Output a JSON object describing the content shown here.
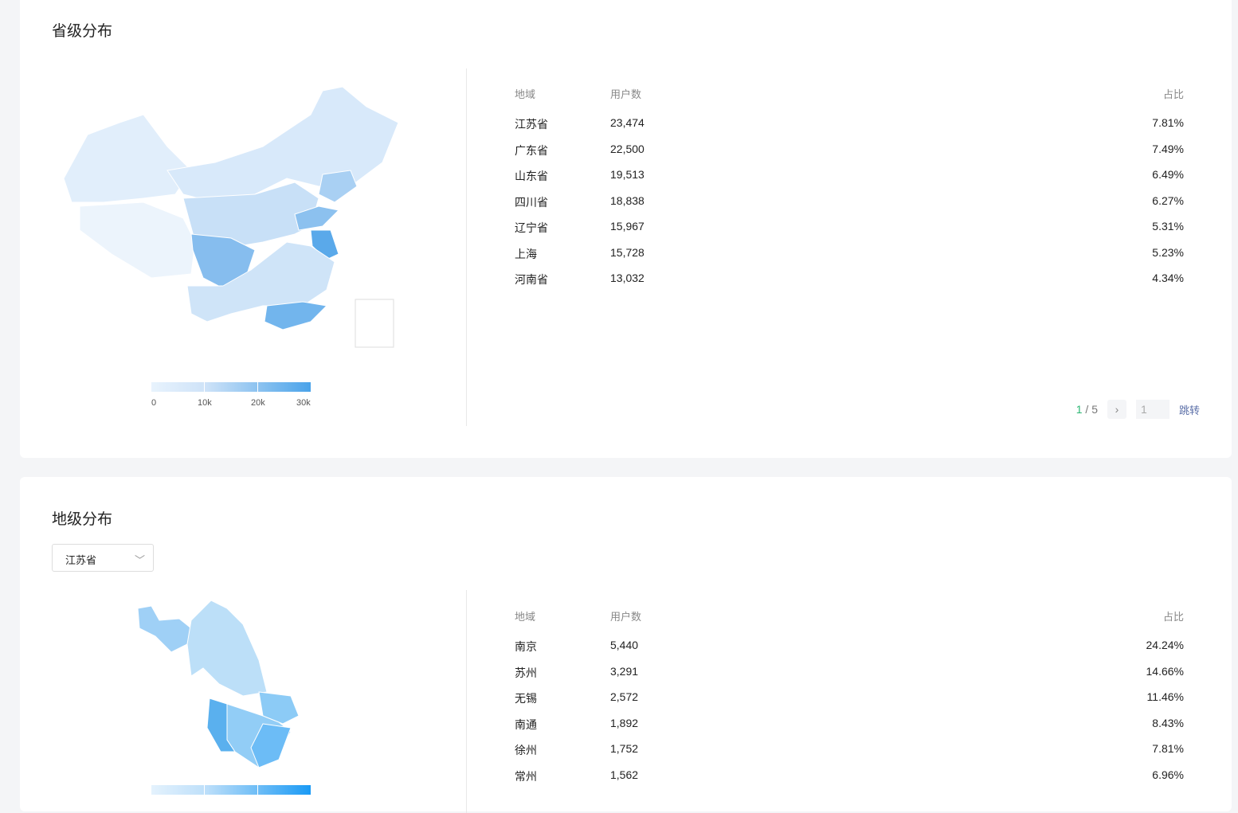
{
  "province": {
    "title": "省级分布",
    "headers": [
      "地域",
      "用户数",
      "占比"
    ],
    "rows": [
      [
        "江苏省",
        "23,474",
        "7.81%"
      ],
      [
        "广东省",
        "22,500",
        "7.49%"
      ],
      [
        "山东省",
        "19,513",
        "6.49%"
      ],
      [
        "四川省",
        "18,838",
        "6.27%"
      ],
      [
        "辽宁省",
        "15,967",
        "5.31%"
      ],
      [
        "上海",
        "15,728",
        "5.23%"
      ],
      [
        "河南省",
        "13,032",
        "4.34%"
      ]
    ],
    "legend": [
      "0",
      "10k",
      "20k",
      "30k"
    ],
    "pager": {
      "current": "1",
      "sep": "/",
      "total": "5",
      "next": "›",
      "input": "1",
      "jump": "跳转"
    }
  },
  "city": {
    "title": "地级分布",
    "select": "江苏省",
    "headers": [
      "地域",
      "用户数",
      "占比"
    ],
    "rows": [
      [
        "南京",
        "5,440",
        "24.24%"
      ],
      [
        "苏州",
        "3,291",
        "14.66%"
      ],
      [
        "无锡",
        "2,572",
        "11.46%"
      ],
      [
        "南通",
        "1,892",
        "8.43%"
      ],
      [
        "徐州",
        "1,752",
        "7.81%"
      ],
      [
        "常州",
        "1,562",
        "6.96%"
      ]
    ]
  },
  "colors": {
    "low": "#e8f3fd",
    "high": "#4aa3ea",
    "city_high": "#1a9af5"
  }
}
